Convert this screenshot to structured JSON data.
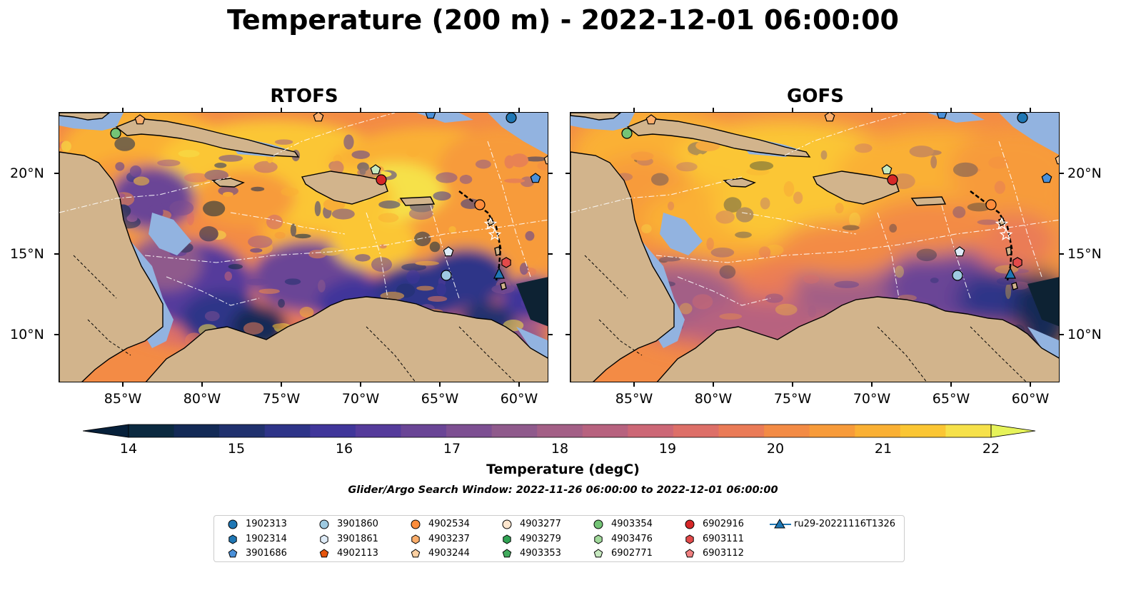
{
  "title": "Temperature (200 m) - 2022-12-01 06:00:00",
  "panels": [
    {
      "title": "RTOFS",
      "variant": "rtofs"
    },
    {
      "title": "GOFS",
      "variant": "gofs"
    }
  ],
  "x_ticks": [
    "85°W",
    "80°W",
    "75°W",
    "70°W",
    "65°W",
    "60°W"
  ],
  "y_ticks": [
    "20°N",
    "15°N",
    "10°N"
  ],
  "colorbar": {
    "label": "Temperature (degC)",
    "ticks": [
      "14",
      "15",
      "16",
      "17",
      "18",
      "19",
      "20",
      "21",
      "22"
    ],
    "colors": [
      "#0b2a40",
      "#132a56",
      "#20316e",
      "#2e3488",
      "#40369a",
      "#553b9b",
      "#6a4596",
      "#7d4f92",
      "#8f5a8c",
      "#a35f86",
      "#b7627f",
      "#cc6776",
      "#dd6f68",
      "#ea7b57",
      "#f38b45",
      "#f79b3a",
      "#fab034",
      "#fbc634",
      "#f6e14a"
    ],
    "under": "#06203a",
    "over": "#e6f35a"
  },
  "search_window": "Glider/Argo Search Window: 2022-11-26 06:00:00 to 2022-12-01 06:00:00",
  "legend": [
    {
      "label": "1902313",
      "marker": "circle",
      "color": "#1f77b4"
    },
    {
      "label": "1902314",
      "marker": "hexagon",
      "color": "#1f77b4"
    },
    {
      "label": "3901686",
      "marker": "pentagon",
      "color": "#4a90d9"
    },
    {
      "label": "3901860",
      "marker": "circle",
      "color": "#9ecae1"
    },
    {
      "label": "3901861",
      "marker": "hexagon",
      "color": "#deebf7"
    },
    {
      "label": "4902113",
      "marker": "pentagon",
      "color": "#e6550d"
    },
    {
      "label": "4902534",
      "marker": "circle",
      "color": "#fd8d3c"
    },
    {
      "label": "4903237",
      "marker": "hexagon",
      "color": "#fdae6b"
    },
    {
      "label": "4903244",
      "marker": "pentagon",
      "color": "#fdd0a2"
    },
    {
      "label": "4903277",
      "marker": "circle",
      "color": "#fee6ce"
    },
    {
      "label": "4903279",
      "marker": "hexagon",
      "color": "#31a354"
    },
    {
      "label": "4903353",
      "marker": "pentagon",
      "color": "#41ab5d"
    },
    {
      "label": "4903354",
      "marker": "circle",
      "color": "#74c476"
    },
    {
      "label": "4903476",
      "marker": "hexagon",
      "color": "#a1d99b"
    },
    {
      "label": "6902771",
      "marker": "pentagon",
      "color": "#c7e9c0"
    },
    {
      "label": "6902916",
      "marker": "circle",
      "color": "#d62728"
    },
    {
      "label": "6903111",
      "marker": "hexagon",
      "color": "#e34a4a"
    },
    {
      "label": "6903112",
      "marker": "pentagon",
      "color": "#f08080"
    },
    {
      "label": "ru29-20221116T1326",
      "marker": "triangle-line",
      "color": "#1f77b4"
    }
  ],
  "map_colors": {
    "land": "#d2b48c",
    "shallow": "#92b3e0",
    "coast": "#000000"
  }
}
